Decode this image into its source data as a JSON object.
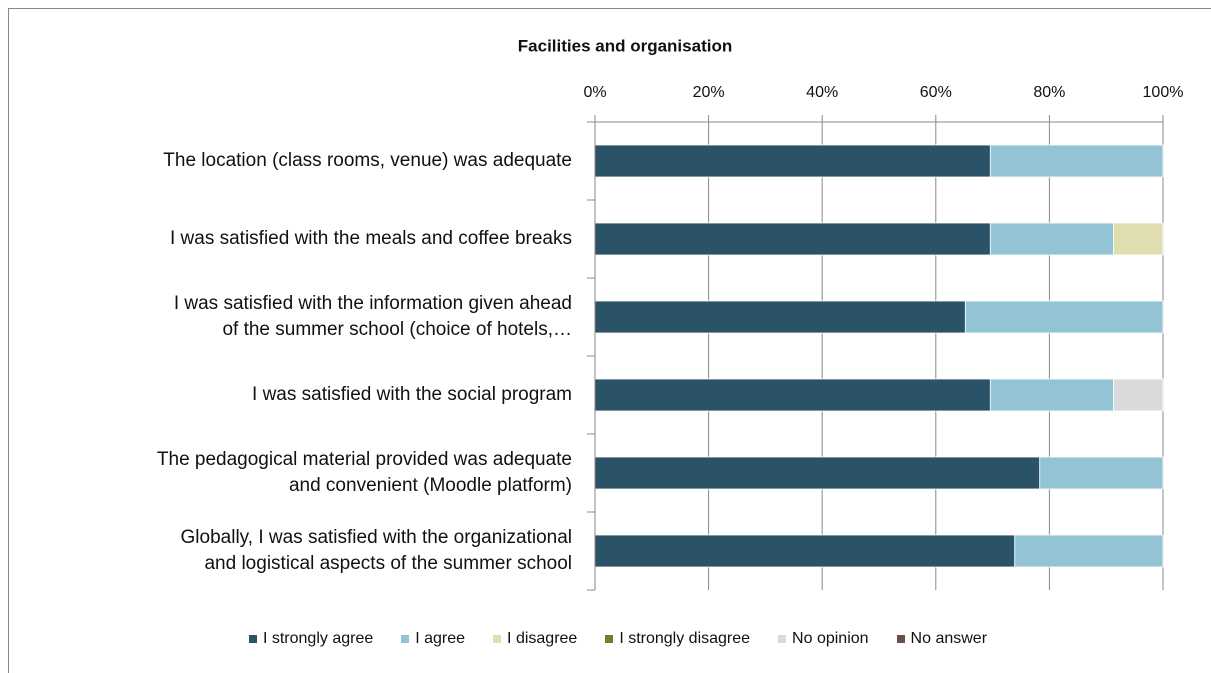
{
  "chart_data": {
    "type": "stacked_barh",
    "title": "Facilities and organisation",
    "categories": [
      "The location (class rooms, venue) was adequate",
      "I was satisfied with the meals and coffee breaks",
      "I was satisfied with the information given ahead\nof the summer school (choice of hotels,…",
      "I was satisfied with the social program",
      "The pedagogical material provided was adequate\nand convenient (Moodle platform)",
      "Globally, I was satisfied with the organizational\nand logistical aspects of the summer school"
    ],
    "series": [
      {
        "name": "I strongly agree",
        "color": "#2a5368",
        "values": [
          69.6,
          69.6,
          65.2,
          69.6,
          78.3,
          73.9
        ]
      },
      {
        "name": "I agree",
        "color": "#93c4d6",
        "values": [
          30.4,
          21.7,
          34.8,
          21.7,
          21.7,
          26.1
        ]
      },
      {
        "name": "I disagree",
        "color": "#e0ddb0",
        "values": [
          0,
          8.7,
          0,
          0,
          0,
          0
        ]
      },
      {
        "name": "I strongly disagree",
        "color": "#7f7a2a",
        "values": [
          0,
          0,
          0,
          0,
          0,
          0
        ]
      },
      {
        "name": "No opinion",
        "color": "#dadada",
        "values": [
          0,
          0,
          0,
          8.7,
          0,
          0
        ]
      },
      {
        "name": "No answer",
        "color": "#6b4e48",
        "values": [
          0,
          0,
          0,
          0,
          0,
          0
        ]
      }
    ],
    "xlim": [
      0,
      100
    ],
    "xticks": [
      {
        "value": 0,
        "label": "0%"
      },
      {
        "value": 20,
        "label": "20%"
      },
      {
        "value": 40,
        "label": "40%"
      },
      {
        "value": 60,
        "label": "60%"
      },
      {
        "value": 80,
        "label": "80%"
      },
      {
        "value": 100,
        "label": "100%"
      }
    ],
    "grid": true,
    "legend": "bottom"
  }
}
